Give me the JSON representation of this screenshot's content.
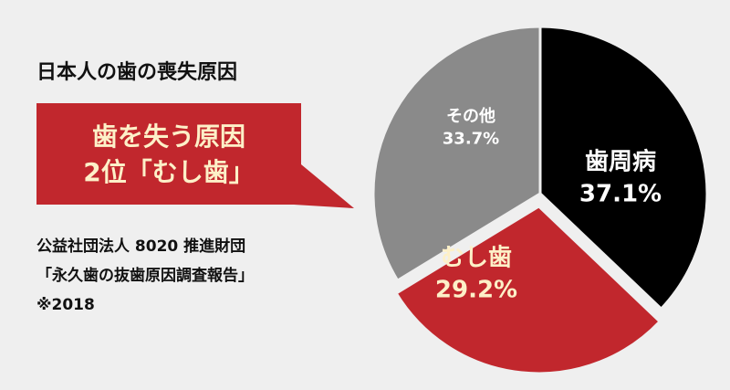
{
  "chart_data": {
    "type": "pie",
    "title": "日本人の歯の喪失原因",
    "categories": [
      "歯周病",
      "むし歯",
      "その他"
    ],
    "values": [
      37.1,
      29.2,
      33.7
    ],
    "value_labels": [
      "37.1%",
      "29.2%",
      "33.7%"
    ],
    "colors": [
      "#000000",
      "#c1272d",
      "#8a8a8a"
    ],
    "exploded": "むし歯",
    "callout": [
      "歯を失う原因",
      "2位「むし歯」"
    ],
    "source": [
      "公益社団法人 8020 推進財団",
      "「永久歯の抜歯原因調査報告」",
      "※2018"
    ]
  }
}
